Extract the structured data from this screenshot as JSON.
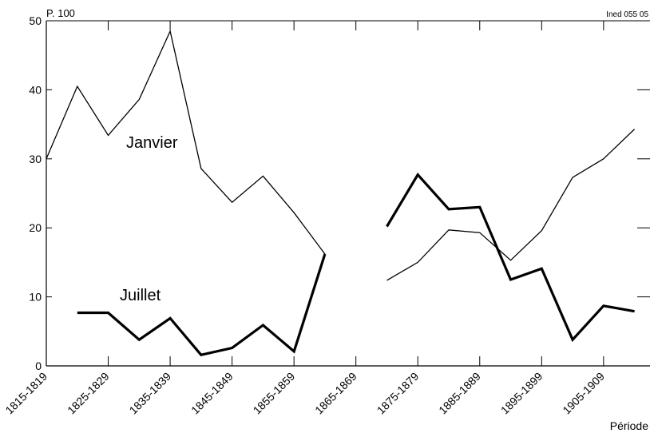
{
  "chart_data": {
    "type": "line",
    "y_unit_label": "P. 100",
    "source_label": "Ined 055 05",
    "xlabel": "Période",
    "ylabel": "",
    "ylim": [
      0,
      50
    ],
    "yticks": [
      0,
      10,
      20,
      30,
      40,
      50
    ],
    "x_tick_labels": [
      "1815-1819",
      "1825-1829",
      "1835-1839",
      "1845-1849",
      "1855-1859",
      "1865-1869",
      "1875-1879",
      "1885-1889",
      "1895-1899",
      "1905-1909"
    ],
    "categories": [
      "1815-1819",
      "1820-1824",
      "1825-1829",
      "1830-1834",
      "1835-1839",
      "1840-1844",
      "1845-1849",
      "1850-1854",
      "1855-1859",
      "1860-1864",
      "1865-1869",
      "1870-1874",
      "1875-1879",
      "1880-1884",
      "1885-1889",
      "1890-1894",
      "1895-1899",
      "1900-1904",
      "1905-1909",
      "1910-1914"
    ],
    "series": [
      {
        "name": "Janvier",
        "color": "#000000",
        "weight": "thin",
        "values": [
          30.0,
          40.5,
          33.4,
          38.6,
          48.5,
          28.6,
          23.7,
          27.5,
          22.2,
          16.2,
          null,
          12.4,
          15.0,
          19.7,
          19.3,
          15.3,
          19.6,
          27.3,
          30.0,
          34.3
        ]
      },
      {
        "name": "Juillet",
        "color": "#000000",
        "weight": "thick",
        "values": [
          null,
          7.7,
          7.7,
          3.8,
          6.9,
          1.6,
          2.6,
          5.9,
          2.1,
          16.2,
          null,
          20.2,
          27.7,
          22.7,
          23.0,
          12.5,
          14.1,
          3.8,
          8.7,
          7.9
        ]
      }
    ]
  }
}
